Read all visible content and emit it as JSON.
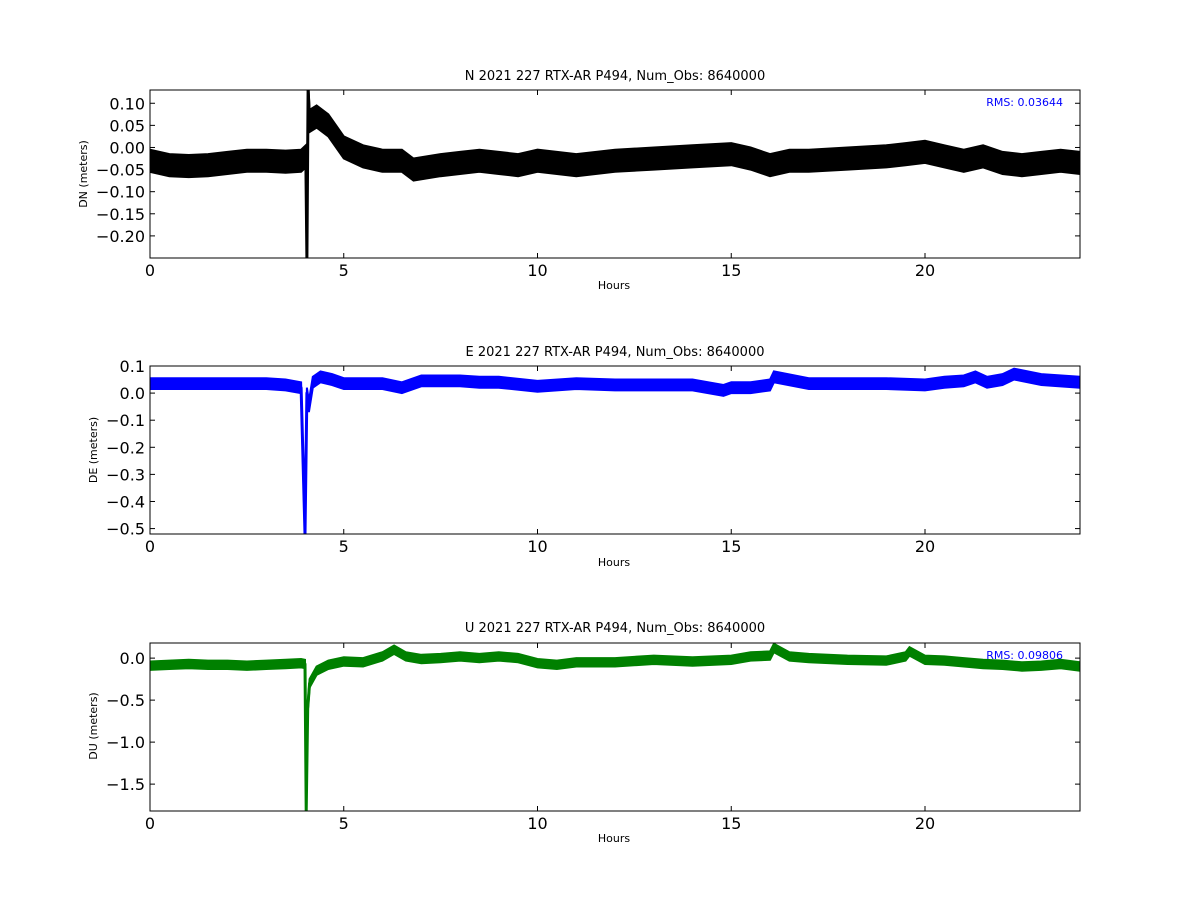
{
  "chart_data": [
    {
      "type": "line",
      "title": "N 2021 227 RTX-AR  P494, Num_Obs: 8640000",
      "xlabel": "Hours",
      "ylabel": "DN (meters)",
      "xlim": [
        0,
        24
      ],
      "ylim": [
        -0.25,
        0.13
      ],
      "xticks": [
        0,
        5,
        10,
        15,
        20
      ],
      "yticks": [
        0.1,
        0.05,
        0.0,
        -0.05,
        -0.1,
        -0.15,
        -0.2
      ],
      "ytick_labels": [
        "0.10",
        "0.05",
        "0.00",
        "−0.05",
        "−0.10",
        "−0.15",
        "−0.20"
      ],
      "annotation": "RMS:  0.03644",
      "annotation_color": "#0000ff",
      "series": [
        {
          "color": "#000000",
          "x": [
            0,
            0.5,
            1,
            1.5,
            2,
            2.5,
            3,
            3.5,
            3.9,
            4.02,
            4.05,
            4.08,
            4.12,
            4.3,
            4.6,
            5,
            5.5,
            6,
            6.5,
            6.8,
            7.5,
            8,
            8.5,
            9,
            9.5,
            10,
            10.5,
            11,
            12,
            13,
            14,
            15,
            15.5,
            16,
            16.5,
            17,
            18,
            19,
            19.5,
            20,
            20.5,
            21,
            21.5,
            22,
            22.5,
            23,
            23.5,
            24
          ],
          "y": [
            -0.03,
            -0.04,
            -0.042,
            -0.04,
            -0.035,
            -0.03,
            -0.03,
            -0.032,
            -0.03,
            -0.02,
            -0.25,
            0.13,
            0.06,
            0.07,
            0.05,
            0.0,
            -0.02,
            -0.03,
            -0.03,
            -0.05,
            -0.04,
            -0.035,
            -0.03,
            -0.035,
            -0.04,
            -0.03,
            -0.035,
            -0.04,
            -0.03,
            -0.025,
            -0.02,
            -0.015,
            -0.025,
            -0.04,
            -0.03,
            -0.03,
            -0.025,
            -0.02,
            -0.015,
            -0.01,
            -0.02,
            -0.03,
            -0.02,
            -0.035,
            -0.04,
            -0.035,
            -0.03,
            -0.035
          ],
          "band": 0.025
        }
      ]
    },
    {
      "type": "line",
      "title": "E 2021 227 RTX-AR  P494, Num_Obs: 8640000",
      "xlabel": "Hours",
      "ylabel": "DE (meters)",
      "xlim": [
        0,
        24
      ],
      "ylim": [
        -0.52,
        0.1
      ],
      "xticks": [
        0,
        5,
        10,
        15,
        20
      ],
      "yticks": [
        0.1,
        0.0,
        -0.1,
        -0.2,
        -0.3,
        -0.4,
        -0.5
      ],
      "ytick_labels": [
        "0.1",
        "0.0",
        "−0.1",
        "−0.2",
        "−0.3",
        "−0.4",
        "−0.5"
      ],
      "annotation": "",
      "annotation_color": "#0000ff",
      "series": [
        {
          "color": "#0000ff",
          "x": [
            0,
            1,
            2,
            3,
            3.5,
            3.9,
            4.0,
            4.05,
            4.1,
            4.2,
            4.4,
            4.7,
            5,
            6,
            6.5,
            7,
            8,
            8.5,
            9,
            10,
            11,
            12,
            13,
            14,
            14.8,
            15,
            15.5,
            16,
            16.1,
            17,
            18,
            19,
            20,
            20.5,
            21,
            21.3,
            21.6,
            22,
            22.3,
            23,
            24
          ],
          "y": [
            0.035,
            0.035,
            0.035,
            0.035,
            0.03,
            0.02,
            -0.52,
            0.0,
            -0.05,
            0.04,
            0.06,
            0.05,
            0.035,
            0.035,
            0.02,
            0.045,
            0.045,
            0.04,
            0.04,
            0.025,
            0.035,
            0.03,
            0.03,
            0.03,
            0.01,
            0.02,
            0.02,
            0.03,
            0.06,
            0.035,
            0.035,
            0.035,
            0.03,
            0.04,
            0.045,
            0.06,
            0.04,
            0.05,
            0.07,
            0.05,
            0.04
          ],
          "band": 0.02
        }
      ]
    },
    {
      "type": "line",
      "title": "U 2021 227 RTX-AR  P494, Num_Obs: 8640000",
      "xlabel": "Hours",
      "ylabel": "DU (meters)",
      "xlim": [
        0,
        24
      ],
      "ylim": [
        -1.82,
        0.18
      ],
      "xticks": [
        0,
        5,
        10,
        15,
        20
      ],
      "yticks": [
        0.0,
        -0.5,
        -1.0,
        -1.5
      ],
      "ytick_labels": [
        "0.0",
        "−0.5",
        "−1.0",
        "−1.5"
      ],
      "annotation": "RMS:  0.09806",
      "annotation_color": "#0000ff",
      "series": [
        {
          "color": "#008000",
          "x": [
            0,
            0.5,
            1,
            1.5,
            2,
            2.5,
            3,
            3.5,
            3.9,
            4.0,
            4.03,
            4.07,
            4.12,
            4.3,
            4.6,
            5,
            5.5,
            6,
            6.3,
            6.6,
            7,
            7.5,
            8,
            8.5,
            9,
            9.5,
            10,
            10.5,
            11,
            12,
            13,
            14,
            15,
            15.5,
            16,
            16.1,
            16.5,
            17,
            18,
            19,
            19.5,
            19.6,
            20,
            20.5,
            21,
            21.5,
            22,
            22.5,
            23,
            23.5,
            24
          ],
          "y": [
            -0.09,
            -0.08,
            -0.07,
            -0.08,
            -0.08,
            -0.09,
            -0.08,
            -0.07,
            -0.06,
            -0.07,
            -1.82,
            -0.6,
            -0.3,
            -0.15,
            -0.08,
            -0.04,
            -0.05,
            0.02,
            0.1,
            0.02,
            -0.01,
            0.0,
            0.02,
            0.0,
            0.02,
            0.0,
            -0.06,
            -0.08,
            -0.05,
            -0.05,
            -0.02,
            -0.04,
            -0.02,
            0.02,
            0.03,
            0.12,
            0.02,
            0.0,
            -0.02,
            -0.03,
            0.02,
            0.08,
            -0.02,
            -0.03,
            -0.05,
            -0.07,
            -0.08,
            -0.1,
            -0.09,
            -0.07,
            -0.1
          ],
          "band": 0.05
        }
      ]
    }
  ]
}
